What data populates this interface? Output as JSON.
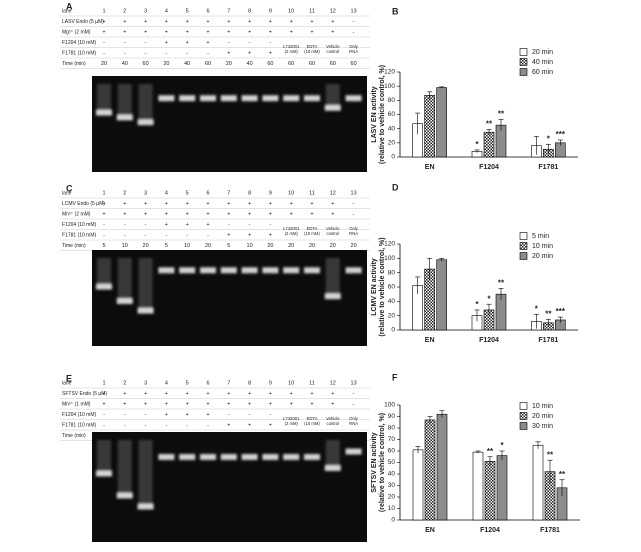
{
  "gels": [
    {
      "letter": "A",
      "rows": [
        {
          "label": "lane",
          "cells": [
            1,
            2,
            3,
            4,
            5,
            6,
            7,
            8,
            9,
            10,
            11,
            12,
            13
          ]
        },
        {
          "label": "LASV Endo (5 µM)",
          "cells": [
            "+",
            "+",
            "+",
            "+",
            "+",
            "+",
            "+",
            "+",
            "+",
            "+",
            "+",
            "+",
            "-"
          ]
        },
        {
          "label": "Mg²⁺ (2 mM)",
          "cells": [
            "+",
            "+",
            "+",
            "+",
            "+",
            "+",
            "+",
            "+",
            "+",
            "+",
            "+",
            "+",
            "-"
          ]
        },
        {
          "label": "F1204 (10 mM)",
          "cells": [
            "-",
            "-",
            "-",
            "+",
            "+",
            "+",
            "-",
            "-",
            "-",
            null,
            null,
            null,
            null
          ]
        },
        {
          "label": "F1781 (10 mM)",
          "cells": [
            "-",
            "-",
            "-",
            "-",
            "-",
            "-",
            "+",
            "+",
            "+",
            [
              "L742001",
              "(2 mM)"
            ],
            [
              "EDTA",
              "(10 mM)"
            ],
            [
              "Vehicle",
              "control"
            ],
            [
              "Only",
              "RNA"
            ]
          ]
        },
        {
          "label": "Time (min)",
          "cells": [
            20,
            40,
            60,
            20,
            40,
            60,
            20,
            40,
            60,
            60,
            60,
            60,
            60
          ]
        }
      ]
    },
    {
      "letter": "C",
      "rows": [
        {
          "label": "lane",
          "cells": [
            1,
            2,
            3,
            4,
            5,
            6,
            7,
            8,
            9,
            10,
            11,
            12,
            13
          ]
        },
        {
          "label": "LCMV Endo (5 µM)",
          "cells": [
            "+",
            "+",
            "+",
            "+",
            "+",
            "+",
            "+",
            "+",
            "+",
            "+",
            "+",
            "+",
            "-"
          ]
        },
        {
          "label": "Mn²⁺ (2 mM)",
          "cells": [
            "+",
            "+",
            "+",
            "+",
            "+",
            "+",
            "+",
            "+",
            "+",
            "+",
            "+",
            "+",
            "-"
          ]
        },
        {
          "label": "F1204 (10 mM)",
          "cells": [
            "-",
            "-",
            "-",
            "+",
            "+",
            "+",
            "-",
            "-",
            "-",
            null,
            null,
            null,
            null
          ]
        },
        {
          "label": "F1781 (10 mM)",
          "cells": [
            "-",
            "-",
            "-",
            "-",
            "-",
            "-",
            "+",
            "+",
            "+",
            [
              "L742001",
              "(2 mM)"
            ],
            [
              "EDTA",
              "(10 mM)"
            ],
            [
              "Vehicle",
              "control"
            ],
            [
              "Only",
              "RNA"
            ]
          ]
        },
        {
          "label": "Time (min)",
          "cells": [
            5,
            10,
            20,
            5,
            10,
            20,
            5,
            10,
            20,
            20,
            20,
            20,
            20
          ]
        }
      ]
    },
    {
      "letter": "E",
      "rows": [
        {
          "label": "lane",
          "cells": [
            1,
            2,
            3,
            4,
            5,
            6,
            7,
            8,
            9,
            10,
            11,
            12,
            13
          ]
        },
        {
          "label": "SFTSV Endo (5 µM)",
          "cells": [
            "+",
            "+",
            "+",
            "+",
            "+",
            "+",
            "+",
            "+",
            "+",
            "+",
            "+",
            "+",
            "-"
          ]
        },
        {
          "label": "Mn²⁺ (1 mM)",
          "cells": [
            "+",
            "+",
            "+",
            "+",
            "+",
            "+",
            "+",
            "+",
            "+",
            "+",
            "+",
            "+",
            "-"
          ]
        },
        {
          "label": "F1204 (10 mM)",
          "cells": [
            "-",
            "-",
            "-",
            "+",
            "+",
            "+",
            "-",
            "-",
            "-",
            null,
            null,
            null,
            null
          ]
        },
        {
          "label": "F1781 (10 mM)",
          "cells": [
            "-",
            "-",
            "-",
            "-",
            "-",
            "-",
            "+",
            "+",
            "+",
            [
              "L742001",
              "(2 mM)"
            ],
            [
              "EDTA",
              "(10 mM)"
            ],
            [
              "Vehicle",
              "control"
            ],
            [
              "Only",
              "RNA"
            ]
          ]
        },
        {
          "label": "Time (min)",
          "cells": [
            10,
            20,
            30,
            10,
            20,
            30,
            10,
            20,
            30,
            30,
            30,
            30,
            30
          ]
        }
      ]
    }
  ],
  "chart_data": [
    {
      "type": "bar",
      "letter": "B",
      "ylabel": [
        "LASV EN activity",
        "(relative to vehicle control, %)"
      ],
      "categories": [
        "EN",
        "F1204",
        "F1781"
      ],
      "ylim": [
        0,
        120
      ],
      "yticks": [
        0,
        20,
        40,
        60,
        80,
        100,
        120
      ],
      "series": [
        {
          "name": "20 min",
          "color": "#ffffff",
          "values": [
            47,
            8,
            16
          ],
          "errors": [
            15,
            2,
            13
          ],
          "stars": [
            null,
            "*",
            null
          ]
        },
        {
          "name": "40 min",
          "color": "hatch",
          "values": [
            87,
            35,
            11
          ],
          "errors": [
            5,
            4,
            7
          ],
          "stars": [
            null,
            "**",
            "*"
          ]
        },
        {
          "name": "60 min",
          "color": "#8c8c8c",
          "values": [
            98,
            45,
            20
          ],
          "errors": [
            1,
            8,
            4
          ],
          "stars": [
            null,
            "**",
            "***"
          ]
        }
      ]
    },
    {
      "type": "bar",
      "letter": "D",
      "ylabel": [
        "LCMV EN activity",
        "(relative to vehicle control, %)"
      ],
      "categories": [
        "EN",
        "F1204",
        "F1781"
      ],
      "ylim": [
        0,
        120
      ],
      "yticks": [
        0,
        20,
        40,
        60,
        80,
        100,
        120
      ],
      "series": [
        {
          "name": "5 min",
          "color": "#ffffff",
          "values": [
            62,
            20,
            12
          ],
          "errors": [
            12,
            8,
            10
          ],
          "stars": [
            null,
            "*",
            "*"
          ]
        },
        {
          "name": "10 min",
          "color": "hatch",
          "values": [
            85,
            28,
            10
          ],
          "errors": [
            15,
            8,
            5
          ],
          "stars": [
            null,
            "*",
            "**"
          ]
        },
        {
          "name": "20 min",
          "color": "#8c8c8c",
          "values": [
            98,
            50,
            14
          ],
          "errors": [
            2,
            8,
            4
          ],
          "stars": [
            null,
            "**",
            "***"
          ]
        }
      ]
    },
    {
      "type": "bar",
      "letter": "F",
      "ylabel": [
        "SFTSV EN activity",
        "(relative to vehicle control, %)"
      ],
      "categories": [
        "EN",
        "F1204",
        "F1781"
      ],
      "ylim": [
        0,
        100
      ],
      "yticks": [
        0,
        10,
        20,
        30,
        40,
        50,
        60,
        70,
        80,
        90,
        100
      ],
      "series": [
        {
          "name": "10 min",
          "color": "#ffffff",
          "values": [
            61,
            59,
            65
          ],
          "errors": [
            3,
            1,
            3
          ],
          "stars": [
            null,
            null,
            null
          ]
        },
        {
          "name": "20 min",
          "color": "hatch",
          "values": [
            87,
            51,
            42
          ],
          "errors": [
            3,
            4,
            10
          ],
          "stars": [
            null,
            "**",
            "**"
          ]
        },
        {
          "name": "30 min",
          "color": "#8c8c8c",
          "values": [
            92,
            56,
            28
          ],
          "errors": [
            3,
            4,
            7
          ],
          "stars": [
            null,
            "*",
            "**"
          ]
        }
      ]
    }
  ]
}
